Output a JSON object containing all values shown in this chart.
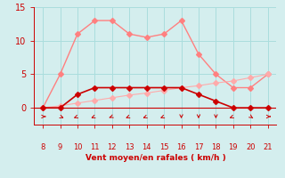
{
  "x": [
    8,
    9,
    10,
    11,
    12,
    13,
    14,
    15,
    16,
    17,
    18,
    19,
    20,
    21
  ],
  "line1_y": [
    0,
    5,
    11,
    13,
    13,
    11,
    10.5,
    11,
    13,
    8,
    5,
    3,
    3,
    5
  ],
  "line2_y": [
    0,
    0,
    2,
    3,
    3,
    3,
    3,
    3,
    3,
    2,
    1,
    0,
    0,
    0
  ],
  "line3_y": [
    0,
    0.3,
    0.7,
    1.1,
    1.5,
    1.9,
    2.2,
    2.6,
    3.0,
    3.3,
    3.7,
    4.0,
    4.5,
    5.0
  ],
  "line1_color": "#ff8080",
  "line2_color": "#cc0000",
  "line3_color": "#ffaaaa",
  "bg_color": "#d4eeee",
  "grid_color": "#aadddd",
  "axis_color": "#cc0000",
  "xlabel": "Vent moyen/en rafales ( km/h )",
  "xlim": [
    7.5,
    21.5
  ],
  "ylim": [
    -2.5,
    15
  ],
  "yticks": [
    0,
    5,
    10,
    15
  ],
  "xticks": [
    8,
    9,
    10,
    11,
    12,
    13,
    14,
    15,
    16,
    17,
    18,
    19,
    20,
    21
  ],
  "arrow_dx": [
    0.3,
    0.21,
    -0.21,
    -0.21,
    -0.3,
    -0.21,
    -0.21,
    -0.21,
    0.0,
    0.0,
    0.0,
    -0.21,
    0.15,
    0.3
  ],
  "arrow_dy": [
    0.0,
    -0.21,
    -0.21,
    -0.21,
    -0.3,
    -0.21,
    -0.21,
    -0.21,
    -0.3,
    -0.3,
    -0.3,
    -0.21,
    -0.25,
    0.0
  ],
  "markersize": 3
}
